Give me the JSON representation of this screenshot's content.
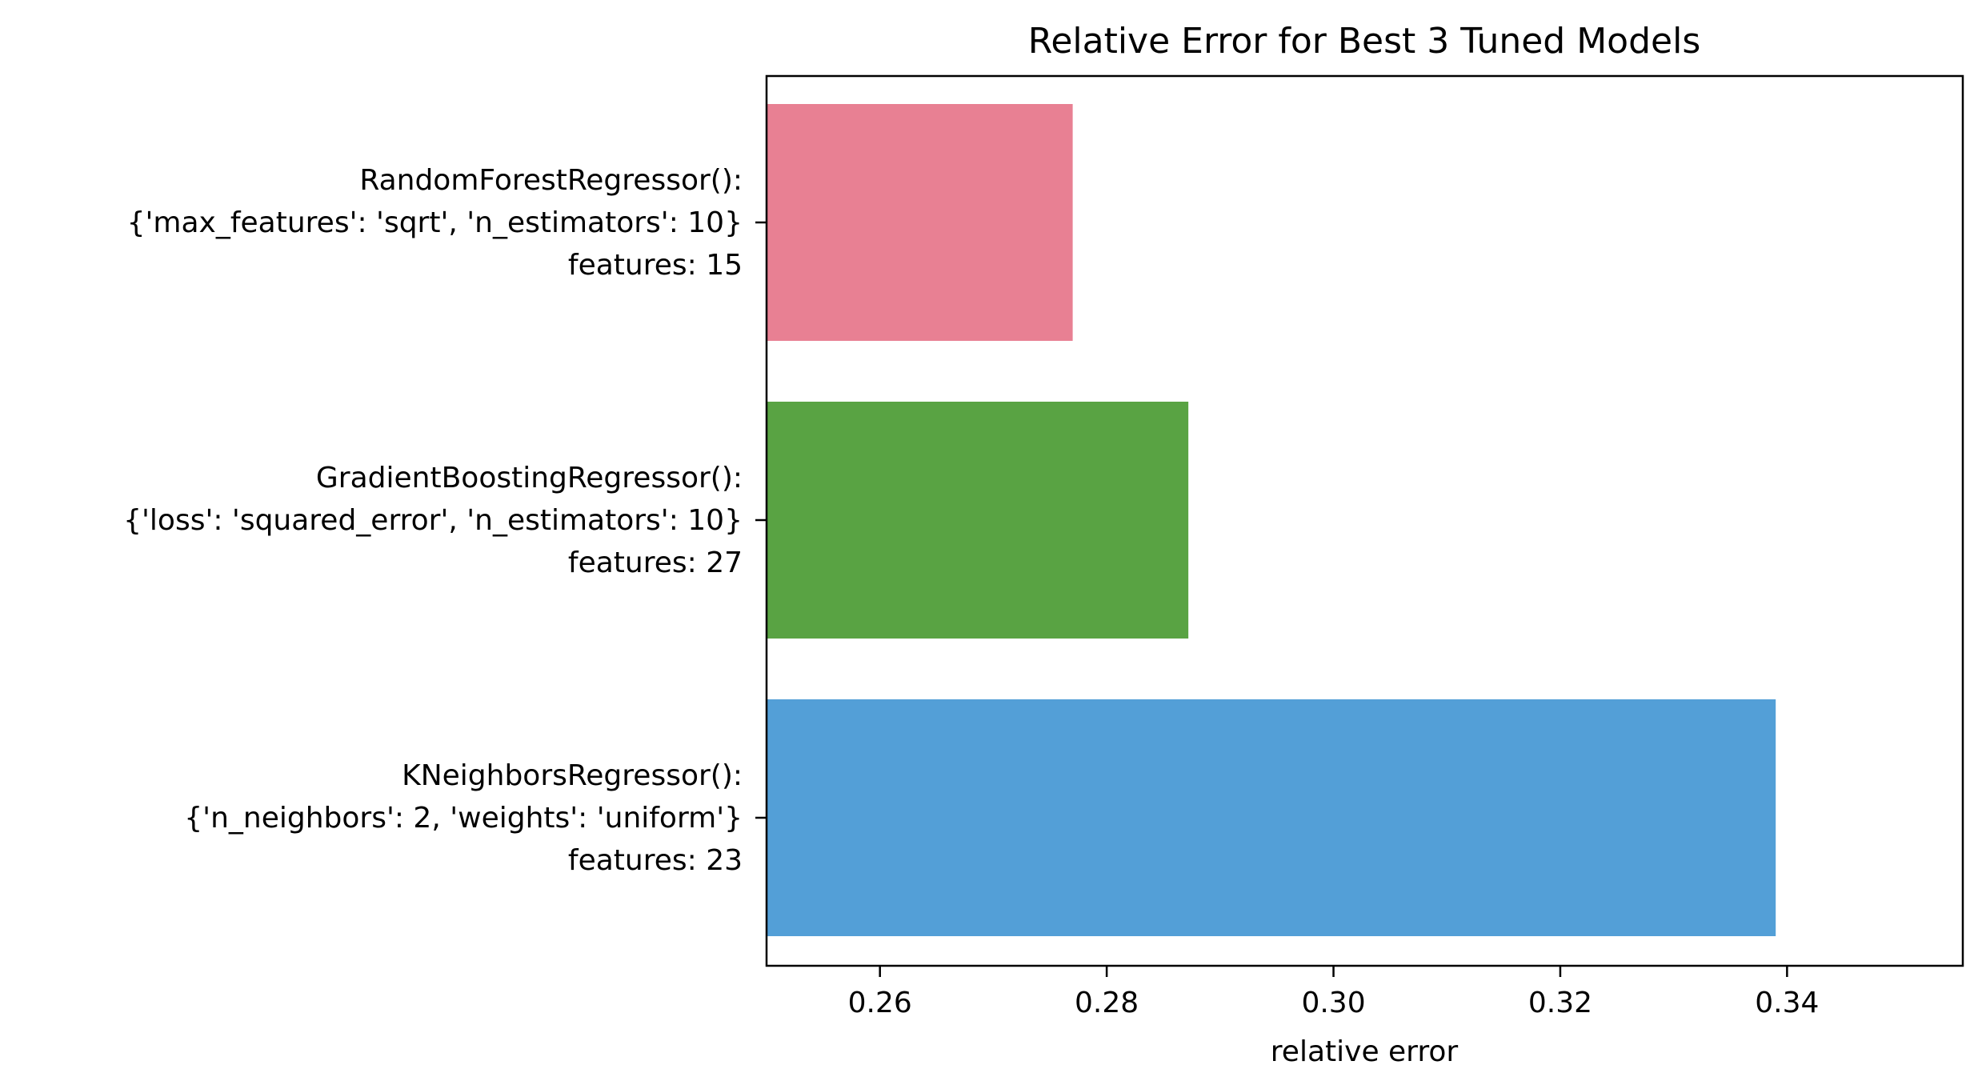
{
  "chart_data": {
    "type": "bar",
    "orientation": "horizontal",
    "title": "Relative Error for Best 3 Tuned Models",
    "xlabel": "relative error",
    "ylabel": "",
    "xlim": [
      0.25,
      0.3555
    ],
    "xticks": [
      "0.26",
      "0.28",
      "0.30",
      "0.32",
      "0.34"
    ],
    "xtick_values": [
      0.26,
      0.28,
      0.3,
      0.32,
      0.34
    ],
    "grid": false,
    "categories": [
      {
        "lines": [
          "RandomForestRegressor():",
          "{'max_features': 'sqrt', 'n_estimators': 10}",
          "features: 15"
        ],
        "value": 0.277,
        "color": "#e88093"
      },
      {
        "lines": [
          "GradientBoostingRegressor():",
          "{'loss': 'squared_error', 'n_estimators': 10}",
          "features: 27"
        ],
        "value": 0.2872,
        "color": "#59a343"
      },
      {
        "lines": [
          "KNeighborsRegressor():",
          "{'n_neighbors': 2, 'weights': 'uniform'}",
          "features: 23"
        ],
        "value": 0.339,
        "color": "#539fd7"
      }
    ]
  }
}
